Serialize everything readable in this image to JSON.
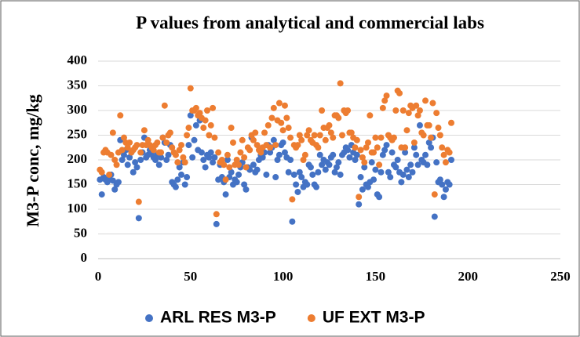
{
  "chart_data": {
    "type": "scatter",
    "title": "P values from analytical and commercial labs",
    "y_label": "M3-P conc, mg/kg",
    "x": [
      1,
      2,
      3,
      4,
      5,
      6,
      7,
      8,
      9,
      10,
      11,
      12,
      13,
      14,
      15,
      16,
      17,
      18,
      19,
      20,
      21,
      22,
      23,
      24,
      25,
      26,
      27,
      28,
      29,
      30,
      31,
      32,
      33,
      34,
      35,
      36,
      37,
      38,
      39,
      40,
      41,
      42,
      43,
      44,
      45,
      46,
      47,
      48,
      49,
      50,
      51,
      52,
      53,
      54,
      55,
      56,
      57,
      58,
      59,
      60,
      61,
      62,
      63,
      64,
      65,
      66,
      67,
      68,
      69,
      70,
      71,
      72,
      73,
      74,
      75,
      76,
      77,
      78,
      79,
      80,
      81,
      82,
      83,
      84,
      85,
      86,
      87,
      88,
      89,
      90,
      91,
      92,
      93,
      94,
      95,
      96,
      97,
      98,
      99,
      100,
      101,
      102,
      103,
      104,
      105,
      106,
      107,
      108,
      109,
      110,
      111,
      112,
      113,
      114,
      115,
      116,
      117,
      118,
      119,
      120,
      121,
      122,
      123,
      124,
      125,
      126,
      127,
      128,
      129,
      130,
      131,
      132,
      133,
      134,
      135,
      136,
      137,
      138,
      139,
      140,
      141,
      142,
      143,
      144,
      145,
      146,
      147,
      148,
      149,
      150,
      151,
      152,
      153,
      154,
      155,
      156,
      157,
      158,
      159,
      160,
      161,
      162,
      163,
      164,
      165,
      166,
      167,
      168,
      169,
      170,
      171,
      172,
      173,
      174,
      175,
      176,
      177,
      178,
      179,
      180,
      181,
      182,
      183,
      184,
      185,
      186,
      187,
      188,
      189,
      190,
      191
    ],
    "series": [
      {
        "name": "ARL RES M3-P",
        "color": "#4472c4",
        "values": [
          160,
          130,
          165,
          160,
          155,
          162,
          170,
          158,
          140,
          150,
          155,
          240,
          200,
          210,
          220,
          190,
          205,
          215,
          175,
          195,
          185,
          82,
          200,
          215,
          245,
          205,
          210,
          220,
          215,
          205,
          200,
          210,
          190,
          205,
          245,
          235,
          200,
          210,
          230,
          155,
          150,
          145,
          160,
          185,
          170,
          195,
          150,
          165,
          230,
          290,
          205,
          240,
          270,
          220,
          280,
          215,
          200,
          185,
          210,
          205,
          215,
          195,
          205,
          70,
          160,
          190,
          165,
          155,
          130,
          200,
          165,
          175,
          150,
          160,
          155,
          170,
          185,
          195,
          150,
          140,
          185,
          180,
          245,
          190,
          175,
          180,
          200,
          210,
          205,
          215,
          170,
          230,
          215,
          225,
          240,
          165,
          200,
          210,
          230,
          235,
          215,
          205,
          175,
          200,
          75,
          170,
          150,
          135,
          175,
          165,
          145,
          155,
          150,
          190,
          185,
          170,
          150,
          145,
          175,
          210,
          190,
          200,
          180,
          195,
          190,
          205,
          210,
          175,
          185,
          195,
          170,
          210,
          215,
          225,
          220,
          205,
          230,
          215,
          200,
          210,
          110,
          165,
          140,
          185,
          150,
          145,
          155,
          195,
          160,
          180,
          130,
          125,
          175,
          210,
          220,
          230,
          175,
          165,
          215,
          190,
          185,
          200,
          175,
          155,
          170,
          215,
          180,
          165,
          190,
          175,
          225,
          210,
          190,
          270,
          200,
          195,
          210,
          190,
          235,
          225,
          245,
          85,
          195,
          155,
          160,
          150,
          125,
          140,
          155,
          150,
          200
        ]
      },
      {
        "name": "UF EXT M3-P",
        "color": "#ed7d31",
        "values": [
          180,
          175,
          215,
          220,
          215,
          170,
          210,
          255,
          200,
          190,
          215,
          290,
          220,
          245,
          235,
          225,
          235,
          215,
          220,
          225,
          230,
          115,
          215,
          230,
          260,
          230,
          240,
          230,
          225,
          220,
          230,
          235,
          215,
          215,
          245,
          310,
          235,
          250,
          255,
          225,
          215,
          210,
          195,
          220,
          230,
          205,
          195,
          250,
          265,
          345,
          300,
          300,
          305,
          290,
          295,
          285,
          265,
          280,
          300,
          250,
          270,
          305,
          245,
          90,
          215,
          195,
          200,
          190,
          160,
          210,
          185,
          265,
          235,
          190,
          200,
          190,
          215,
          240,
          205,
          185,
          225,
          220,
          250,
          240,
          255,
          230,
          220,
          215,
          225,
          255,
          230,
          270,
          225,
          285,
          305,
          230,
          280,
          315,
          275,
          260,
          310,
          285,
          265,
          245,
          120,
          230,
          225,
          230,
          250,
          240,
          200,
          210,
          250,
          260,
          240,
          235,
          250,
          230,
          225,
          250,
          300,
          265,
          240,
          265,
          270,
          255,
          245,
          290,
          290,
          285,
          355,
          250,
          300,
          295,
          300,
          255,
          255,
          245,
          225,
          240,
          125,
          220,
          205,
          195,
          225,
          235,
          290,
          215,
          215,
          245,
          225,
          190,
          245,
          305,
          320,
          330,
          250,
          245,
          240,
          245,
          300,
          340,
          335,
          225,
          300,
          225,
          260,
          295,
          310,
          305,
          235,
          310,
          290,
          300,
          255,
          250,
          320,
          270,
          270,
          245,
          315,
          130,
          295,
          265,
          250,
          225,
          210,
          195,
          220,
          215,
          275
        ]
      }
    ],
    "xlim": [
      0,
      250
    ],
    "xticks": [
      0,
      50,
      100,
      150,
      200,
      250
    ],
    "ylim": [
      0,
      400
    ],
    "yticks": [
      0,
      50,
      100,
      150,
      200,
      250,
      300,
      350,
      400
    ],
    "grid": true,
    "legend": "bottom"
  }
}
